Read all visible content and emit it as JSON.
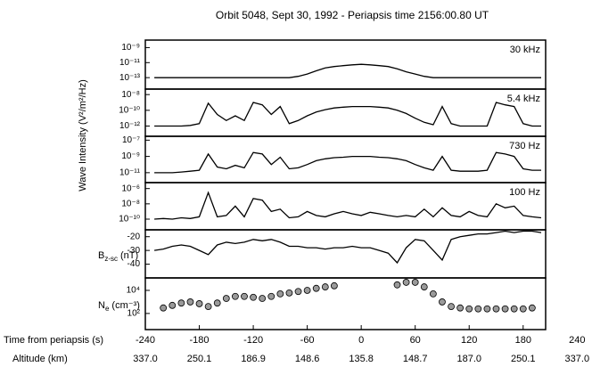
{
  "title": "Orbit 5048, Sept 30, 1992 - Periapsis time 2156:00.80 UT",
  "y_label": "Wave Intensity (V²/m²/Hz)",
  "x_axis": {
    "label": "Time from periapsis (s)",
    "xlim": [
      -240,
      205
    ],
    "xticks": [
      -240,
      -180,
      -120,
      -60,
      0,
      60,
      120,
      180,
      240
    ],
    "altitude_label": "Altitude (km)",
    "altitude_ticks": [
      "337.0",
      "250.1",
      "186.9",
      "148.6",
      "135.8",
      "148.7",
      "187.0",
      "250.1",
      "337.0"
    ],
    "x": [
      -230,
      -220,
      -210,
      -200,
      -190,
      -180,
      -170,
      -160,
      -150,
      -140,
      -130,
      -120,
      -110,
      -100,
      -90,
      -80,
      -70,
      -60,
      -50,
      -40,
      -30,
      -20,
      -10,
      0,
      10,
      20,
      30,
      40,
      50,
      60,
      70,
      80,
      90,
      100,
      110,
      120,
      130,
      140,
      150,
      160,
      170,
      180,
      190,
      200
    ]
  },
  "chart_data": [
    {
      "type": "line",
      "label": "30 kHz",
      "log": true,
      "color": "#000000",
      "ylim": [
        3e-15,
        1e-08
      ],
      "yticks": [
        {
          "value": 1e-09,
          "label": "10⁻⁹"
        },
        {
          "value": 1e-11,
          "label": "10⁻¹¹"
        },
        {
          "value": 1e-13,
          "label": "10⁻¹³"
        }
      ],
      "values": [
        1e-13,
        1e-13,
        1e-13,
        1e-13,
        1e-13,
        1e-13,
        1e-13,
        1e-13,
        1e-13,
        1e-13,
        1e-13,
        1e-13,
        1e-13,
        1e-13,
        1e-13,
        1e-13,
        1.5e-13,
        3e-13,
        8e-13,
        2e-12,
        3e-12,
        4e-12,
        5e-12,
        6e-12,
        5e-12,
        4e-12,
        3e-12,
        1.5e-12,
        6e-13,
        3e-13,
        1.5e-13,
        1e-13,
        1e-13,
        1e-13,
        1e-13,
        1e-13,
        1e-13,
        1e-13,
        1e-13,
        1e-13,
        1e-13,
        1e-13,
        1e-13,
        1e-13
      ]
    },
    {
      "type": "line",
      "label": "5.4 kHz",
      "log": true,
      "color": "#000000",
      "ylim": [
        5e-14,
        5e-08
      ],
      "yticks": [
        {
          "value": 1e-08,
          "label": "10⁻⁸"
        },
        {
          "value": 1e-10,
          "label": "10⁻¹⁰"
        },
        {
          "value": 1e-12,
          "label": "10⁻¹²"
        }
      ],
      "values": [
        1e-12,
        1e-12,
        1e-12,
        1e-12,
        1.2e-12,
        2e-12,
        8e-10,
        3e-11,
        5e-12,
        2e-11,
        5e-12,
        1e-09,
        5e-10,
        3e-11,
        3e-10,
        2e-12,
        5e-12,
        2e-11,
        6e-11,
        1.2e-10,
        2e-10,
        2.5e-10,
        3e-10,
        3e-10,
        3e-10,
        2.5e-10,
        2e-10,
        1e-10,
        4e-11,
        1e-11,
        3e-12,
        1.5e-12,
        3e-10,
        2e-12,
        1e-12,
        1e-12,
        1e-12,
        1e-12,
        1e-09,
        5e-10,
        3e-10,
        2e-12,
        1e-12,
        1e-12
      ]
    },
    {
      "type": "line",
      "label": "730 Hz",
      "log": true,
      "color": "#000000",
      "ylim": [
        6e-13,
        3e-07
      ],
      "yticks": [
        {
          "value": 1e-07,
          "label": "10⁻⁷"
        },
        {
          "value": 1e-09,
          "label": "10⁻⁹"
        },
        {
          "value": 1e-11,
          "label": "10⁻¹¹"
        }
      ],
      "values": [
        1e-11,
        1e-11,
        1e-11,
        1.2e-11,
        1.5e-11,
        2e-11,
        2e-09,
        5e-11,
        3e-11,
        8e-11,
        4e-11,
        3e-09,
        2e-09,
        1e-10,
        8e-10,
        3e-11,
        4e-11,
        1e-10,
        3e-10,
        5e-10,
        7e-10,
        8e-10,
        1e-09,
        1e-09,
        1e-09,
        8e-10,
        7e-10,
        5e-10,
        3e-10,
        1e-10,
        4e-11,
        2e-11,
        1e-09,
        2e-11,
        1.5e-11,
        1.5e-11,
        1.5e-11,
        2e-11,
        3e-09,
        2e-09,
        1e-09,
        3e-11,
        2e-11,
        2e-11
      ]
    },
    {
      "type": "line",
      "label": "100 Hz",
      "log": true,
      "color": "#000000",
      "ylim": [
        4e-12,
        6e-06
      ],
      "yticks": [
        {
          "value": 1e-06,
          "label": "10⁻⁶"
        },
        {
          "value": 1e-08,
          "label": "10⁻⁸"
        },
        {
          "value": 1e-10,
          "label": "10⁻¹⁰"
        }
      ],
      "values": [
        1e-10,
        1.2e-10,
        1e-10,
        1.5e-10,
        1.2e-10,
        2e-10,
        3e-07,
        2e-10,
        3e-10,
        5e-09,
        2e-10,
        5e-08,
        3e-08,
        1e-09,
        2e-09,
        1.5e-10,
        2e-10,
        1e-09,
        3e-10,
        2e-10,
        5e-10,
        1e-09,
        5e-10,
        3e-10,
        8e-10,
        5e-10,
        3e-10,
        2e-10,
        3e-10,
        2e-10,
        2e-09,
        2e-10,
        3e-09,
        3e-10,
        2e-10,
        1e-09,
        3e-10,
        2e-10,
        1e-08,
        3e-09,
        5e-09,
        3e-10,
        2e-10,
        1.5e-10
      ]
    },
    {
      "type": "line",
      "y_label": {
        "symbol": "B",
        "subscript": "z-sc",
        "unit": "(nT)"
      },
      "log": false,
      "color": "#000000",
      "ylim": [
        -50,
        -15
      ],
      "yticks": [
        -20,
        -30,
        -40
      ],
      "values": [
        -30,
        -29,
        -27,
        -26,
        -27,
        -30,
        -33,
        -26,
        -24,
        -25,
        -24,
        -22,
        -23,
        -22,
        -24,
        -27,
        -27,
        -28,
        -28,
        -29,
        -28,
        -28,
        -27,
        -28,
        -28,
        -30,
        -32,
        -39,
        -28,
        -22,
        -23,
        -30,
        -37,
        -22,
        -20,
        -19,
        -18,
        -18,
        -17,
        -16,
        -17,
        -16,
        -16,
        -17
      ]
    },
    {
      "type": "scatter",
      "y_label": {
        "symbol": "N",
        "subscript": "e",
        "unit": "(cm⁻³)"
      },
      "log": true,
      "color": "#9a9a9a",
      "ylim": [
        4,
        120000.0
      ],
      "yticks": [
        {
          "value": 10000,
          "label": "10⁴"
        },
        {
          "value": 100,
          "label": "10²"
        }
      ],
      "values": [
        null,
        300,
        500,
        800,
        1000,
        700,
        400,
        800,
        2000,
        3000,
        3000,
        2500,
        2000,
        3000,
        5000,
        6000,
        8000,
        10000,
        15000,
        20000,
        25000,
        null,
        null,
        null,
        null,
        null,
        null,
        30000,
        50000,
        50000,
        20000,
        5000,
        1000,
        400,
        300,
        250,
        250,
        250,
        250,
        250,
        250,
        250,
        300,
        null
      ]
    }
  ]
}
